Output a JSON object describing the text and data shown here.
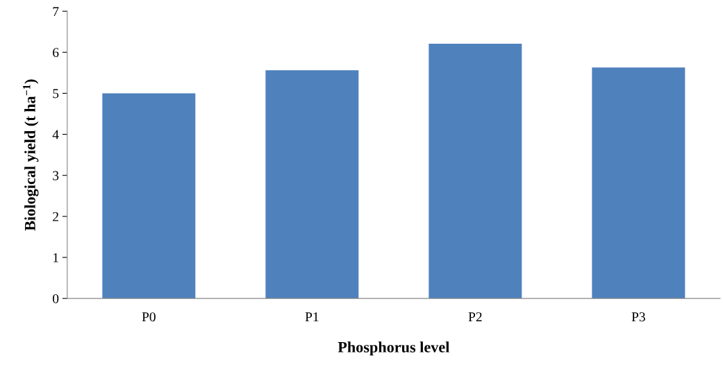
{
  "chart_data": {
    "type": "bar",
    "xlabel": "Phosphorus level",
    "ylabel": "Biological yield (t ha$^{−1}$)",
    "categories": [
      "P0",
      "P1",
      "P2",
      "P3"
    ],
    "values": [
      5.0,
      5.56,
      6.21,
      5.63
    ],
    "color": "#4f81bd",
    "ylim": [
      0,
      7
    ],
    "yticks": [
      0,
      1,
      2,
      3,
      4,
      5,
      6,
      7
    ],
    "grid": false
  }
}
